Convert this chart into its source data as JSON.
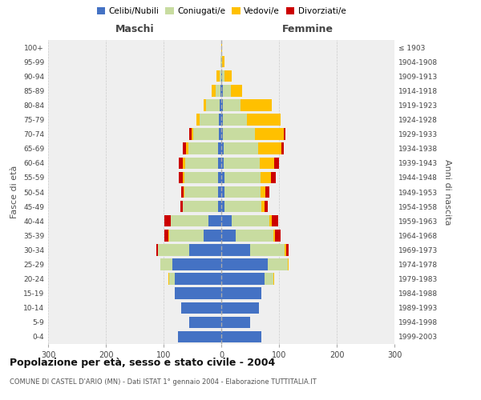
{
  "age_groups": [
    "0-4",
    "5-9",
    "10-14",
    "15-19",
    "20-24",
    "25-29",
    "30-34",
    "35-39",
    "40-44",
    "45-49",
    "50-54",
    "55-59",
    "60-64",
    "65-69",
    "70-74",
    "75-79",
    "80-84",
    "85-89",
    "90-94",
    "95-99",
    "100+"
  ],
  "birth_years": [
    "1999-2003",
    "1994-1998",
    "1989-1993",
    "1984-1988",
    "1979-1983",
    "1974-1978",
    "1969-1973",
    "1964-1968",
    "1959-1963",
    "1954-1958",
    "1949-1953",
    "1944-1948",
    "1939-1943",
    "1934-1938",
    "1929-1933",
    "1924-1928",
    "1919-1923",
    "1914-1918",
    "1909-1913",
    "1904-1908",
    "≤ 1903"
  ],
  "colors": {
    "celibi": "#4472C4",
    "coniugati": "#c8dca0",
    "vedovi": "#ffc000",
    "divorziati": "#cc0000"
  },
  "maschi": {
    "celibi": [
      75,
      55,
      70,
      80,
      80,
      85,
      55,
      30,
      22,
      6,
      6,
      6,
      5,
      5,
      4,
      4,
      3,
      2,
      0,
      0,
      0
    ],
    "coniugati": [
      0,
      0,
      0,
      0,
      10,
      20,
      55,
      60,
      65,
      60,
      58,
      58,
      58,
      52,
      44,
      33,
      24,
      8,
      3,
      1,
      0
    ],
    "vedovi": [
      0,
      0,
      0,
      0,
      2,
      1,
      0,
      1,
      1,
      1,
      1,
      2,
      3,
      4,
      3,
      6,
      4,
      7,
      5,
      1,
      0
    ],
    "divorziati": [
      0,
      0,
      0,
      0,
      0,
      0,
      3,
      8,
      10,
      4,
      5,
      7,
      8,
      5,
      5,
      0,
      0,
      0,
      0,
      0,
      0
    ]
  },
  "femmine": {
    "celibi": [
      70,
      50,
      65,
      70,
      75,
      80,
      50,
      25,
      18,
      5,
      5,
      5,
      4,
      4,
      3,
      3,
      3,
      3,
      1,
      0,
      0
    ],
    "coniugati": [
      0,
      0,
      0,
      0,
      15,
      35,
      60,
      65,
      65,
      65,
      63,
      63,
      63,
      60,
      55,
      42,
      30,
      13,
      5,
      2,
      0
    ],
    "vedovi": [
      0,
      0,
      0,
      0,
      1,
      1,
      2,
      3,
      5,
      5,
      8,
      18,
      25,
      40,
      50,
      58,
      55,
      20,
      12,
      3,
      1
    ],
    "divorziati": [
      0,
      0,
      0,
      0,
      0,
      1,
      5,
      10,
      10,
      5,
      7,
      8,
      8,
      5,
      3,
      0,
      0,
      0,
      0,
      0,
      0
    ]
  },
  "xlim": 300,
  "title": "Popolazione per età, sesso e stato civile - 2004",
  "subtitle": "COMUNE DI CASTEL D'ARIO (MN) - Dati ISTAT 1° gennaio 2004 - Elaborazione TUTTITALIA.IT",
  "ylabel_left": "Fasce di età",
  "ylabel_right": "Anni di nascita",
  "xlabel_left": "Maschi",
  "xlabel_right": "Femmine",
  "bg_color": "#f0f0f0",
  "grid_color": "#cccccc"
}
